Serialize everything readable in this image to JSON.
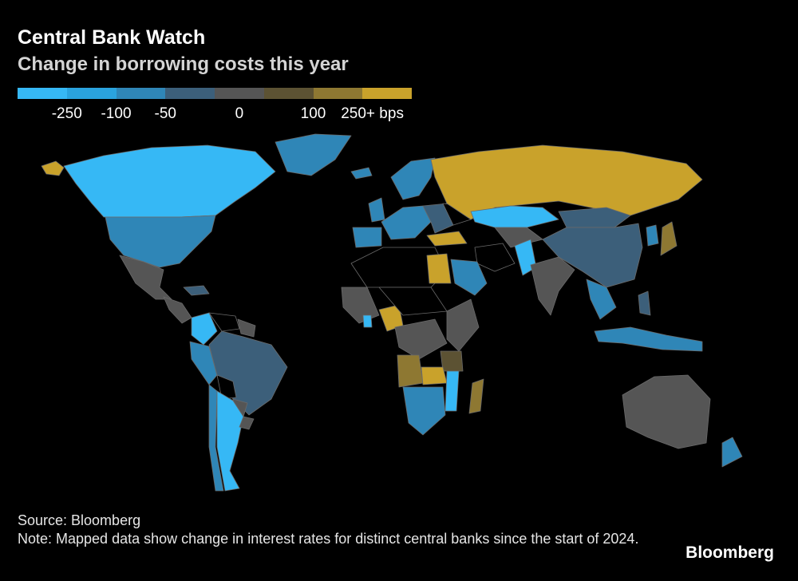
{
  "header": {
    "title": "Central Bank Watch",
    "subtitle": "Change in borrowing costs this year"
  },
  "legend": {
    "colors": [
      "#36b8f5",
      "#2aa3de",
      "#2f86b7",
      "#3c5f7a",
      "#555555",
      "#5c5233",
      "#8e7832",
      "#c9a22b"
    ],
    "labels": [
      {
        "text": "-250",
        "pos": 1
      },
      {
        "text": "-100",
        "pos": 2
      },
      {
        "text": "-50",
        "pos": 3
      },
      {
        "text": "0",
        "pos": 4.5
      },
      {
        "text": "100",
        "pos": 6
      },
      {
        "text": "250+ bps",
        "pos": 7.2
      }
    ]
  },
  "map_colors": {
    "no_data": "#000000",
    "border": "#6a6a6a"
  },
  "footer": {
    "source": "Source: Bloomberg",
    "note": "Note: Mapped data show change in interest rates for distinct central banks since the start of 2024.",
    "logo": "Bloomberg"
  }
}
